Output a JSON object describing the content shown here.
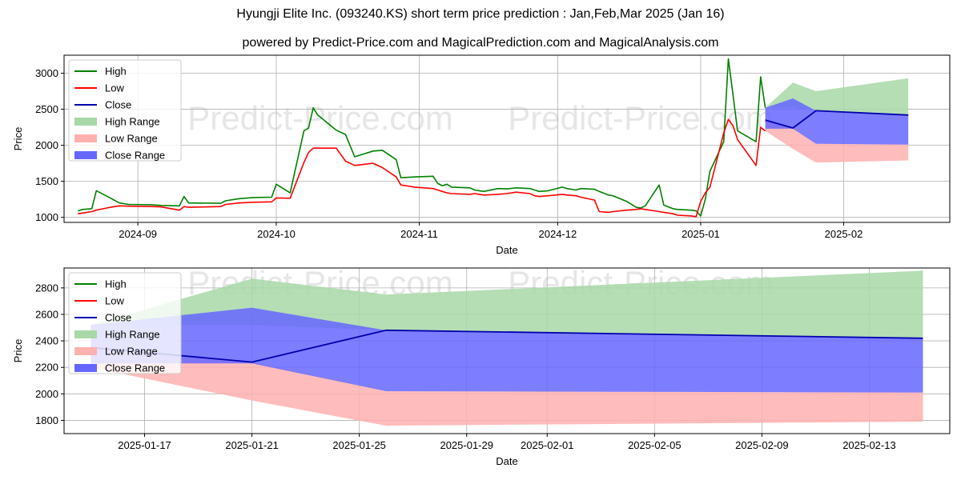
{
  "title": "Hyungji Elite Inc. (093240.KS) short term price prediction : Jan,Feb,Mar 2025 (Jan 16)",
  "subtitle": "powered by Predict-Price.com and MagicalPrediction.com and MagicalAnalysis.com",
  "watermark": "Predict-Price.com",
  "colors": {
    "high": "#008000",
    "low": "#ff0000",
    "close": "#0000b0",
    "high_range": "#a8d8a8",
    "low_range": "#ffb0b0",
    "close_range": "#6666ff",
    "grid": "#b0b0b0",
    "watermark": "#e6e6e6"
  },
  "legend": [
    {
      "key": "high",
      "label": "High",
      "kind": "line"
    },
    {
      "key": "low",
      "label": "Low",
      "kind": "line"
    },
    {
      "key": "close",
      "label": "Close",
      "kind": "line"
    },
    {
      "key": "high_range",
      "label": "High Range",
      "kind": "patch"
    },
    {
      "key": "low_range",
      "label": "Low Range",
      "kind": "patch"
    },
    {
      "key": "close_range",
      "label": "Close Range",
      "kind": "patch"
    }
  ],
  "chart_data": [
    {
      "type": "line",
      "panel": "history",
      "xlabel": "Date",
      "ylabel": "Price",
      "xlim": [
        "2024-08-16",
        "2025-02-24"
      ],
      "ylim": [
        930,
        3250
      ],
      "yticks": [
        1000,
        1500,
        2000,
        2500,
        3000
      ],
      "xticks": [
        "2024-09-01",
        "2024-10-01",
        "2024-11-01",
        "2024-12-01",
        "2025-01-01",
        "2025-02-01"
      ],
      "xtick_labels": [
        "2024-09",
        "2024-10",
        "2024-11",
        "2024-12",
        "2025-01",
        "2025-02"
      ],
      "grid": true,
      "legend_position": "upper left",
      "series": [
        {
          "name": "High",
          "points": [
            [
              "2024-08-19",
              1090
            ],
            [
              "2024-08-20",
              1110
            ],
            [
              "2024-08-22",
              1120
            ],
            [
              "2024-08-23",
              1370
            ],
            [
              "2024-08-26",
              1270
            ],
            [
              "2024-08-28",
              1200
            ],
            [
              "2024-08-30",
              1180
            ],
            [
              "2024-09-04",
              1175
            ],
            [
              "2024-09-06",
              1165
            ],
            [
              "2024-09-10",
              1160
            ],
            [
              "2024-09-11",
              1290
            ],
            [
              "2024-09-12",
              1200
            ],
            [
              "2024-09-19",
              1195
            ],
            [
              "2024-09-20",
              1230
            ],
            [
              "2024-09-23",
              1260
            ],
            [
              "2024-09-26",
              1275
            ],
            [
              "2024-09-30",
              1280
            ],
            [
              "2024-10-01",
              1460
            ],
            [
              "2024-10-04",
              1340
            ],
            [
              "2024-10-07",
              2200
            ],
            [
              "2024-10-08",
              2240
            ],
            [
              "2024-10-09",
              2520
            ],
            [
              "2024-10-10",
              2420
            ],
            [
              "2024-10-14",
              2210
            ],
            [
              "2024-10-16",
              2150
            ],
            [
              "2024-10-18",
              1840
            ],
            [
              "2024-10-22",
              1920
            ],
            [
              "2024-10-24",
              1930
            ],
            [
              "2024-10-27",
              1800
            ],
            [
              "2024-10-28",
              1550
            ],
            [
              "2024-10-31",
              1560
            ],
            [
              "2024-11-04",
              1570
            ],
            [
              "2024-11-05",
              1470
            ],
            [
              "2024-11-06",
              1440
            ],
            [
              "2024-11-07",
              1460
            ],
            [
              "2024-11-08",
              1420
            ],
            [
              "2024-11-12",
              1410
            ],
            [
              "2024-11-13",
              1380
            ],
            [
              "2024-11-14",
              1370
            ],
            [
              "2024-11-15",
              1360
            ],
            [
              "2024-11-18",
              1400
            ],
            [
              "2024-11-20",
              1395
            ],
            [
              "2024-11-22",
              1410
            ],
            [
              "2024-11-25",
              1400
            ],
            [
              "2024-11-26",
              1380
            ],
            [
              "2024-11-27",
              1360
            ],
            [
              "2024-11-29",
              1370
            ],
            [
              "2024-12-02",
              1420
            ],
            [
              "2024-12-03",
              1400
            ],
            [
              "2024-12-05",
              1380
            ],
            [
              "2024-12-06",
              1400
            ],
            [
              "2024-12-09",
              1390
            ],
            [
              "2024-12-10",
              1360
            ],
            [
              "2024-12-12",
              1310
            ],
            [
              "2024-12-13",
              1300
            ],
            [
              "2024-12-16",
              1220
            ],
            [
              "2024-12-18",
              1140
            ],
            [
              "2024-12-19",
              1130
            ],
            [
              "2024-12-20",
              1160
            ],
            [
              "2024-12-23",
              1450
            ],
            [
              "2024-12-24",
              1170
            ],
            [
              "2024-12-26",
              1120
            ],
            [
              "2024-12-27",
              1110
            ],
            [
              "2024-12-30",
              1100
            ],
            [
              "2024-12-31",
              1090
            ],
            [
              "2025-01-01",
              1020
            ],
            [
              "2025-01-02",
              1250
            ],
            [
              "2025-01-03",
              1640
            ],
            [
              "2025-01-06",
              2050
            ],
            [
              "2025-01-07",
              3200
            ],
            [
              "2025-01-08",
              2700
            ],
            [
              "2025-01-09",
              2200
            ],
            [
              "2025-01-13",
              2050
            ],
            [
              "2025-01-14",
              2950
            ],
            [
              "2025-01-15",
              2520
            ]
          ]
        },
        {
          "name": "Low",
          "points": [
            [
              "2024-08-19",
              1050
            ],
            [
              "2024-08-20",
              1060
            ],
            [
              "2024-08-22",
              1080
            ],
            [
              "2024-08-23",
              1100
            ],
            [
              "2024-08-26",
              1140
            ],
            [
              "2024-08-28",
              1160
            ],
            [
              "2024-08-30",
              1155
            ],
            [
              "2024-09-04",
              1150
            ],
            [
              "2024-09-06",
              1145
            ],
            [
              "2024-09-10",
              1100
            ],
            [
              "2024-09-11",
              1150
            ],
            [
              "2024-09-12",
              1140
            ],
            [
              "2024-09-19",
              1150
            ],
            [
              "2024-09-20",
              1180
            ],
            [
              "2024-09-23",
              1200
            ],
            [
              "2024-09-26",
              1210
            ],
            [
              "2024-09-30",
              1215
            ],
            [
              "2024-10-01",
              1270
            ],
            [
              "2024-10-04",
              1265
            ],
            [
              "2024-10-07",
              1760
            ],
            [
              "2024-10-08",
              1900
            ],
            [
              "2024-10-09",
              1960
            ],
            [
              "2024-10-10",
              1960
            ],
            [
              "2024-10-14",
              1960
            ],
            [
              "2024-10-16",
              1780
            ],
            [
              "2024-10-18",
              1720
            ],
            [
              "2024-10-22",
              1750
            ],
            [
              "2024-10-24",
              1690
            ],
            [
              "2024-10-27",
              1560
            ],
            [
              "2024-10-28",
              1450
            ],
            [
              "2024-10-31",
              1420
            ],
            [
              "2024-11-04",
              1400
            ],
            [
              "2024-11-05",
              1380
            ],
            [
              "2024-11-06",
              1360
            ],
            [
              "2024-11-07",
              1340
            ],
            [
              "2024-11-08",
              1330
            ],
            [
              "2024-11-12",
              1320
            ],
            [
              "2024-11-13",
              1330
            ],
            [
              "2024-11-14",
              1320
            ],
            [
              "2024-11-15",
              1310
            ],
            [
              "2024-11-18",
              1320
            ],
            [
              "2024-11-20",
              1330
            ],
            [
              "2024-11-22",
              1350
            ],
            [
              "2024-11-25",
              1330
            ],
            [
              "2024-11-26",
              1300
            ],
            [
              "2024-11-27",
              1290
            ],
            [
              "2024-11-29",
              1300
            ],
            [
              "2024-12-02",
              1320
            ],
            [
              "2024-12-03",
              1310
            ],
            [
              "2024-12-05",
              1300
            ],
            [
              "2024-12-06",
              1280
            ],
            [
              "2024-12-09",
              1240
            ],
            [
              "2024-12-10",
              1080
            ],
            [
              "2024-12-12",
              1070
            ],
            [
              "2024-12-13",
              1080
            ],
            [
              "2024-12-16",
              1100
            ],
            [
              "2024-12-18",
              1110
            ],
            [
              "2024-12-19",
              1120
            ],
            [
              "2024-12-20",
              1110
            ],
            [
              "2024-12-23",
              1080
            ],
            [
              "2024-12-24",
              1070
            ],
            [
              "2024-12-26",
              1050
            ],
            [
              "2024-12-27",
              1030
            ],
            [
              "2024-12-30",
              1020
            ],
            [
              "2024-12-31",
              1010
            ],
            [
              "2025-01-01",
              1220
            ],
            [
              "2025-01-02",
              1340
            ],
            [
              "2025-01-03",
              1420
            ],
            [
              "2025-01-06",
              2170
            ],
            [
              "2025-01-07",
              2360
            ],
            [
              "2025-01-08",
              2270
            ],
            [
              "2025-01-09",
              2080
            ],
            [
              "2025-01-13",
              1720
            ],
            [
              "2025-01-14",
              2250
            ],
            [
              "2025-01-15",
              2200
            ]
          ]
        }
      ]
    },
    {
      "type": "area",
      "panel": "forecast",
      "xlabel": "Date",
      "ylabel": "Price",
      "xlim": [
        "2025-01-14",
        "2025-02-16"
      ],
      "ylim": [
        1700,
        2950
      ],
      "yticks": [
        1800,
        2000,
        2200,
        2400,
        2600,
        2800
      ],
      "xticks": [
        "2025-01-17",
        "2025-01-21",
        "2025-01-25",
        "2025-01-29",
        "2025-02-01",
        "2025-02-05",
        "2025-02-09",
        "2025-02-13"
      ],
      "grid": true,
      "legend_position": "upper left",
      "x": [
        "2025-01-15",
        "2025-01-21",
        "2025-01-26",
        "2025-02-15"
      ],
      "series": [
        {
          "name": "Close",
          "values": [
            2350,
            2240,
            2480,
            2420
          ]
        },
        {
          "name": "High Range",
          "lower": [
            2520,
            2520,
            2480,
            2420
          ],
          "upper": [
            2520,
            2870,
            2750,
            2930
          ]
        },
        {
          "name": "Low Range",
          "lower": [
            2200,
            1950,
            1760,
            1790
          ],
          "upper": [
            2350,
            2240,
            2020,
            2010
          ]
        },
        {
          "name": "Close Range",
          "lower": [
            2230,
            2230,
            2020,
            2010
          ],
          "upper": [
            2520,
            2650,
            2480,
            2420
          ]
        }
      ]
    }
  ]
}
